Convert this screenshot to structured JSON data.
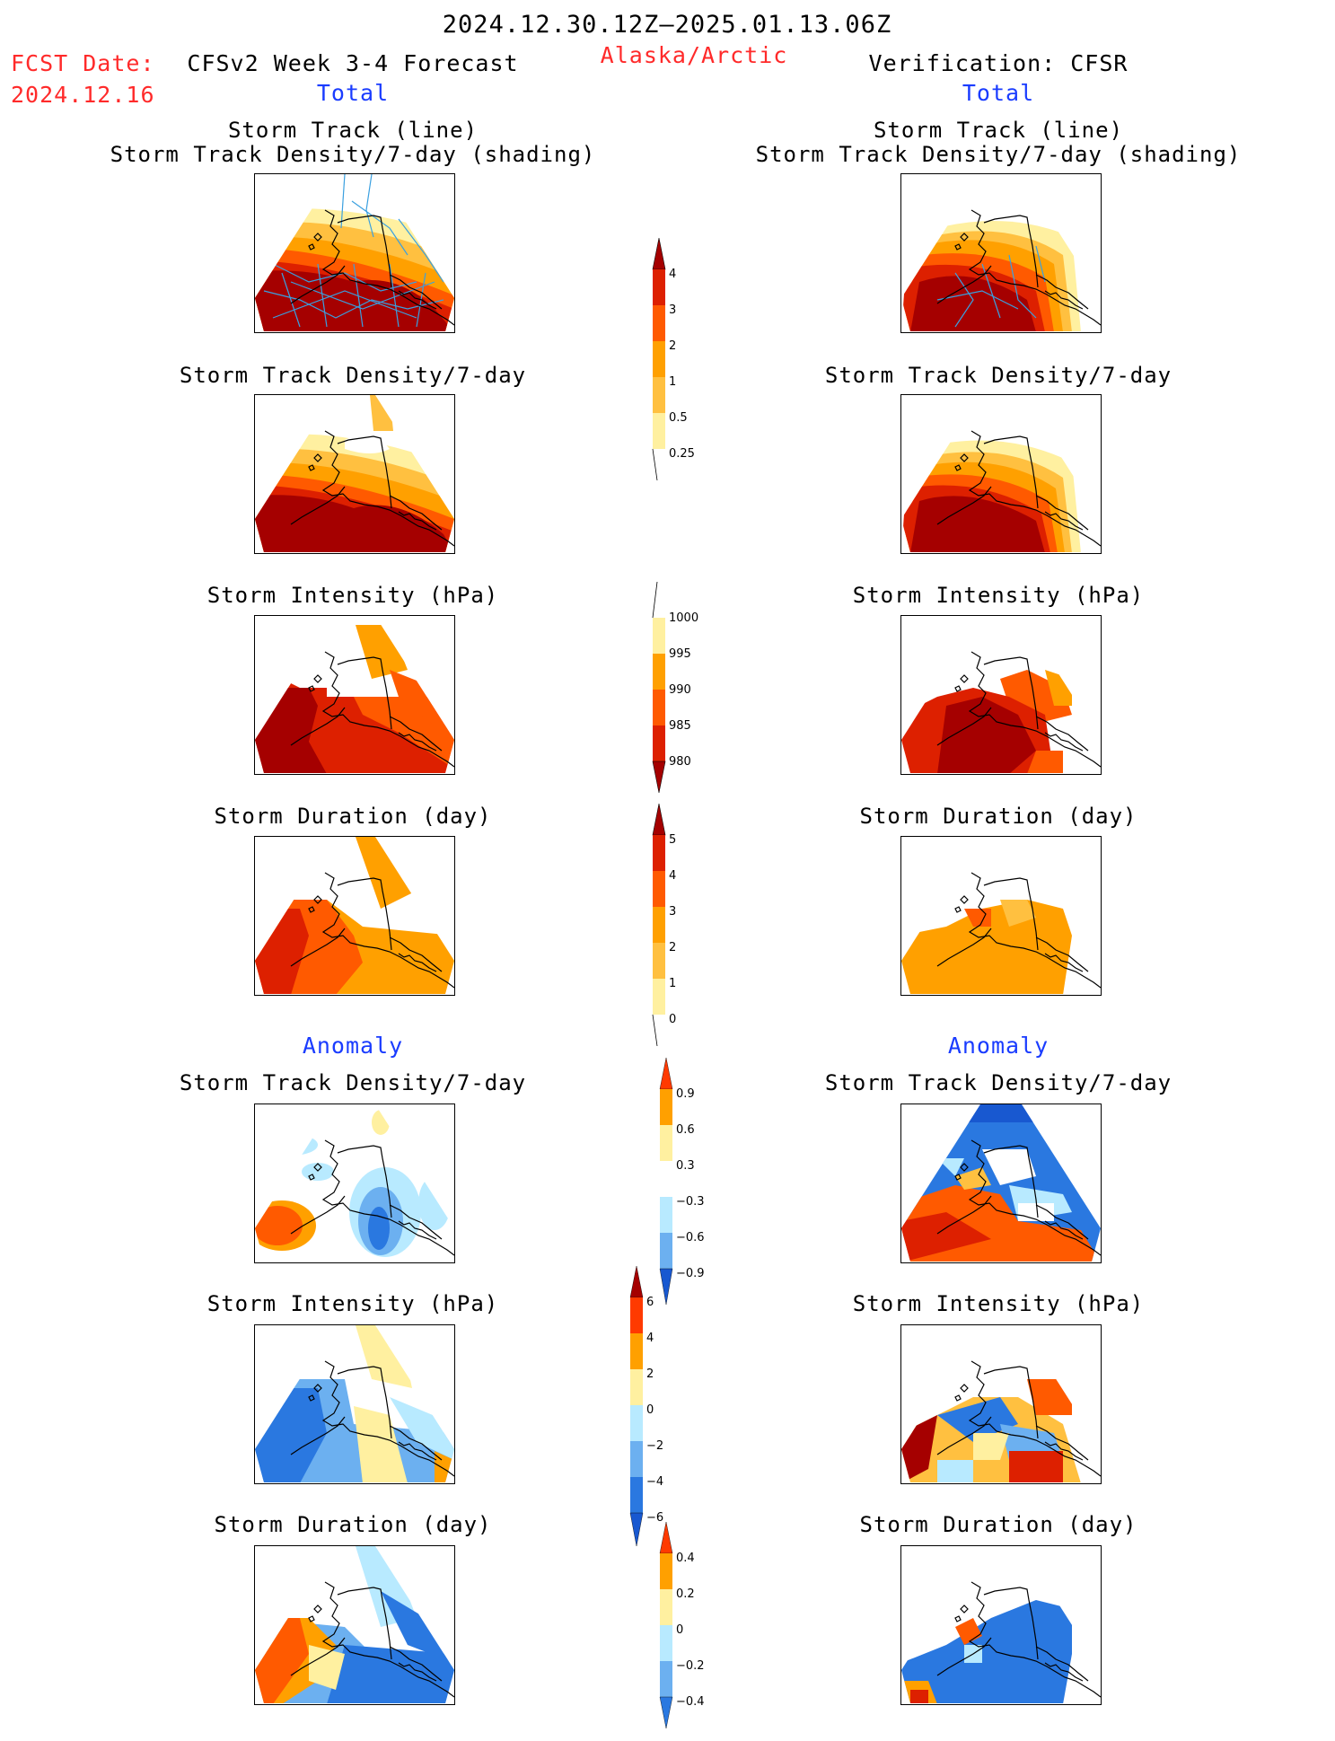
{
  "header": {
    "period": "2024.12.30.12Z–2025.01.13.06Z",
    "fcst_label": "FCST Date:",
    "fcst_date": "2024.12.16",
    "model": "CFSv2 Week 3-4 Forecast",
    "region": "Alaska/Arctic",
    "verification": "Verification: CFSR",
    "total_left": "Total",
    "total_right": "Total",
    "anomaly_left": "Anomaly",
    "anomaly_right": "Anomaly"
  },
  "panels": {
    "track_line": "Storm Track (line)",
    "track_shading": "Storm Track Density/7-day (shading)",
    "density": "Storm Track Density/7-day",
    "intensity": "Storm Intensity (hPa)",
    "duration": "Storm Duration (day)"
  },
  "colorbars": {
    "density_total": [
      "4",
      "3",
      "2",
      "1",
      "0.5",
      "0.25"
    ],
    "intensity_total": [
      "1000",
      "995",
      "990",
      "985",
      "980"
    ],
    "duration_total": [
      "5",
      "4",
      "3",
      "2",
      "1",
      "0"
    ],
    "density_anom": [
      "0.9",
      "0.6",
      "0.3",
      "−0.3",
      "−0.6",
      "−0.9"
    ],
    "intensity_anom": [
      "6",
      "4",
      "2",
      "0",
      "−2",
      "−4",
      "−6"
    ],
    "duration_anom": [
      "0.4",
      "0.2",
      "0",
      "−0.2",
      "−0.4"
    ]
  },
  "colors": {
    "dark_red": "#a50000",
    "red": "#dd2000",
    "orange_red": "#ff5a00",
    "orange": "#ffa000",
    "light_orange": "#ffc040",
    "pale_yellow": "#fff0a0",
    "track_blue": "#3aa0e0",
    "light_blue": "#b8eaff",
    "mid_blue": "#6cb0f0",
    "blue": "#2a78e0",
    "deep_blue": "#1858d0"
  }
}
